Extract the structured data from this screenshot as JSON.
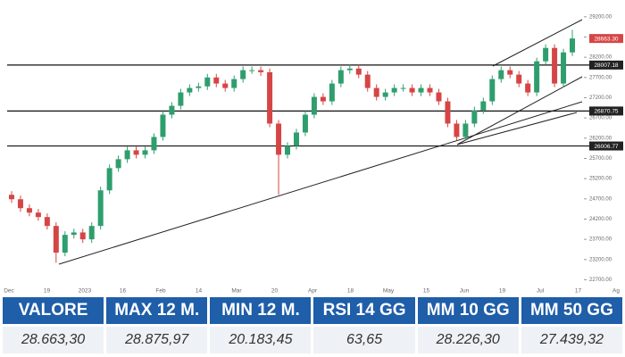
{
  "chart_data": {
    "type": "candlestick",
    "open": [
      24800,
      24690,
      24470,
      24360,
      24250,
      24030,
      23370,
      23810,
      23870,
      23700,
      24030,
      24910,
      25460,
      25680,
      25900,
      25790,
      25900,
      26230,
      26780,
      27000,
      27330,
      27440,
      27480,
      27700,
      27550,
      27440,
      27660,
      27880,
      27880,
      27830,
      26560,
      25790,
      26010,
      26340,
      26780,
      27220,
      27110,
      27550,
      27880,
      27920,
      27770,
      27440,
      27220,
      27330,
      27440,
      27440,
      27330,
      27440,
      27330,
      27110,
      26560,
      26230,
      26560,
      26890,
      27110,
      27660,
      27880,
      27770,
      27550,
      27330,
      28100,
      28430,
      27550,
      28320
    ],
    "high": [
      24890,
      24780,
      24560,
      24450,
      24340,
      24120,
      23900,
      23960,
      23960,
      24120,
      25000,
      25550,
      25770,
      25990,
      25990,
      25990,
      26320,
      26870,
      27090,
      27420,
      27530,
      27570,
      27790,
      27790,
      27640,
      27750,
      27970,
      27970,
      27970,
      27920,
      26650,
      26100,
      26430,
      26870,
      27310,
      27310,
      27640,
      27970,
      28010,
      28010,
      27860,
      27530,
      27420,
      27530,
      27530,
      27530,
      27530,
      27530,
      27420,
      27200,
      26650,
      26650,
      26980,
      27200,
      27750,
      27970,
      27970,
      27860,
      27640,
      28190,
      28520,
      28520,
      28410,
      28875.97
    ],
    "low": [
      24600,
      24380,
      24270,
      24160,
      23940,
      23120,
      23280,
      23720,
      23610,
      23610,
      23940,
      24820,
      25370,
      25590,
      25700,
      25700,
      25810,
      26140,
      26690,
      26910,
      27240,
      27350,
      27390,
      27460,
      27350,
      27350,
      27570,
      27790,
      27740,
      26470,
      24800,
      25700,
      25920,
      26250,
      26690,
      27020,
      27020,
      27460,
      27790,
      27680,
      27350,
      27130,
      27130,
      27240,
      27350,
      27240,
      27240,
      27240,
      27020,
      26470,
      26140,
      26140,
      26470,
      26800,
      27020,
      27570,
      27680,
      27460,
      27240,
      27240,
      28010,
      27460,
      27460,
      28230
    ],
    "close": [
      24690,
      24470,
      24360,
      24250,
      24030,
      23370,
      23810,
      23870,
      23700,
      24030,
      24910,
      25460,
      25680,
      25900,
      25790,
      25900,
      26230,
      26780,
      27000,
      27330,
      27440,
      27480,
      27700,
      27550,
      27440,
      27660,
      27880,
      27880,
      27830,
      26560,
      25790,
      26010,
      26340,
      26780,
      27220,
      27110,
      27550,
      27880,
      27920,
      27770,
      27440,
      27220,
      27330,
      27440,
      27440,
      27330,
      27440,
      27330,
      27110,
      26560,
      26230,
      26560,
      26890,
      27110,
      27660,
      27880,
      27770,
      27550,
      27330,
      28100,
      28430,
      27550,
      28320,
      28663.3
    ],
    "up_color": "#2f9e6e",
    "down_color": "#d64545",
    "x_labels": [
      "Dec",
      "19",
      "2023",
      "16",
      "Feb",
      "14",
      "Mar",
      "20",
      "Apr",
      "18",
      "May",
      "15",
      "Jun",
      "19",
      "Jul",
      "17",
      "Ag"
    ],
    "ylim": [
      22600,
      29350
    ],
    "yticks": [
      {
        "value": 22700,
        "label": "22700.00"
      },
      {
        "value": 23200,
        "label": "23200.00"
      },
      {
        "value": 23700,
        "label": "23700.00"
      },
      {
        "value": 24200,
        "label": "24200.00"
      },
      {
        "value": 24700,
        "label": "24700.00"
      },
      {
        "value": 25200,
        "label": "25200.00"
      },
      {
        "value": 25700,
        "label": "25700.00"
      },
      {
        "value": 26200,
        "label": "26200.00"
      },
      {
        "value": 26700,
        "label": "26700.00"
      },
      {
        "value": 27200,
        "label": "27200.00"
      },
      {
        "value": 27700,
        "label": "27700.00"
      },
      {
        "value": 28200,
        "label": "28200.00"
      },
      {
        "value": 28700,
        "label": "28700.00"
      },
      {
        "value": 29200,
        "label": "29200.00"
      }
    ],
    "levels": [
      28007.18,
      26870.75,
      26006.77
    ],
    "current_price": {
      "value": 28663.3,
      "label": "28663.30"
    },
    "current_color": "#d64545"
  },
  "table": {
    "headers": [
      "VALORE",
      "MAX 12 M.",
      "MIN 12 M.",
      "RSI 14 GG",
      "MM 10 GG",
      "MM 50 GG"
    ],
    "values": [
      "28.663,30",
      "28.875,97",
      "20.183,45",
      "63,65",
      "28.226,30",
      "27.439,32"
    ]
  }
}
